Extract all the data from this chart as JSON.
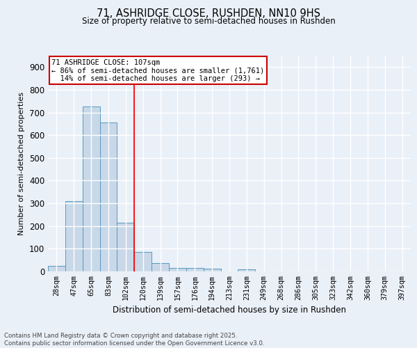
{
  "title1": "71, ASHRIDGE CLOSE, RUSHDEN, NN10 9HS",
  "title2": "Size of property relative to semi-detached houses in Rushden",
  "xlabel": "Distribution of semi-detached houses by size in Rushden",
  "ylabel": "Number of semi-detached properties",
  "footer1": "Contains HM Land Registry data © Crown copyright and database right 2025.",
  "footer2": "Contains public sector information licensed under the Open Government Licence v3.0.",
  "bar_labels": [
    "28sqm",
    "47sqm",
    "65sqm",
    "83sqm",
    "102sqm",
    "120sqm",
    "139sqm",
    "157sqm",
    "176sqm",
    "194sqm",
    "213sqm",
    "231sqm",
    "249sqm",
    "268sqm",
    "286sqm",
    "305sqm",
    "323sqm",
    "342sqm",
    "360sqm",
    "379sqm",
    "397sqm"
  ],
  "bar_values": [
    25,
    310,
    725,
    655,
    215,
    85,
    37,
    15,
    14,
    11,
    0,
    10,
    0,
    0,
    0,
    0,
    0,
    0,
    0,
    0,
    0
  ],
  "bar_color": "#c8d8e8",
  "bar_edge_color": "#5599bb",
  "red_line_x": 4.5,
  "annotation_title": "71 ASHRIDGE CLOSE: 107sqm",
  "annotation_line1": "← 86% of semi-detached houses are smaller (1,761)",
  "annotation_line2": "14% of semi-detached houses are larger (293) →",
  "ylim": [
    0,
    950
  ],
  "yticks": [
    0,
    100,
    200,
    300,
    400,
    500,
    600,
    700,
    800,
    900
  ],
  "bg_color": "#eaf0f8",
  "plot_bg_color": "#eaf0f8",
  "grid_color": "#ffffff",
  "annotation_box_color": "#ffffff",
  "annotation_box_edge": "#cc0000"
}
